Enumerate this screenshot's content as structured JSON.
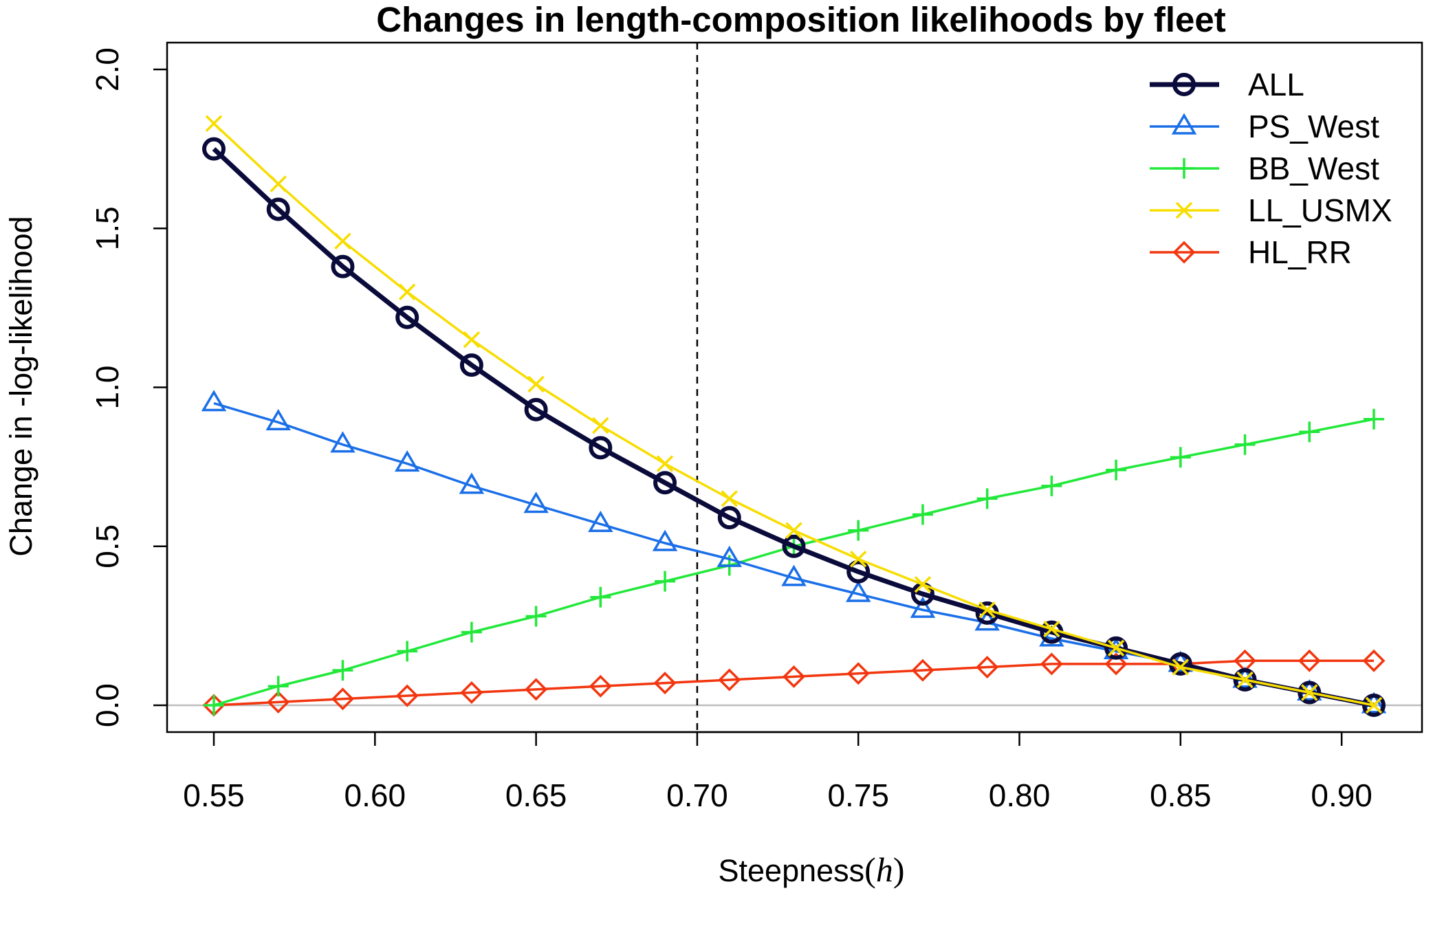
{
  "chart_data": {
    "type": "line",
    "title": "Changes in length-composition likelihoods by fleet",
    "xlabel": {
      "text": "Steepness",
      "symbol": "h"
    },
    "ylabel": "Change in -log-likelihood",
    "xlim": [
      0.55,
      0.91
    ],
    "ylim": [
      0.0,
      2.0
    ],
    "x_ticks": [
      "0.55",
      "0.60",
      "0.65",
      "0.70",
      "0.75",
      "0.80",
      "0.85",
      "0.90"
    ],
    "y_ticks": [
      "0.0",
      "0.5",
      "1.0",
      "1.5",
      "2.0"
    ],
    "reference_vline": 0.7,
    "reference_hline": 0.0,
    "legend_position": "top-right",
    "x": [
      0.55,
      0.57,
      0.59,
      0.61,
      0.63,
      0.65,
      0.67,
      0.69,
      0.71,
      0.73,
      0.75,
      0.77,
      0.79,
      0.81,
      0.83,
      0.85,
      0.87,
      0.89,
      0.91
    ],
    "series": [
      {
        "name": "ALL",
        "color": "#0b0b3b",
        "marker": "circle",
        "values": [
          1.75,
          1.56,
          1.38,
          1.22,
          1.07,
          0.93,
          0.81,
          0.7,
          0.59,
          0.5,
          0.42,
          0.35,
          0.29,
          0.23,
          0.18,
          0.13,
          0.08,
          0.04,
          0.0
        ]
      },
      {
        "name": "PS_West",
        "color": "#1a6fe8",
        "marker": "triangle",
        "values": [
          0.95,
          0.89,
          0.82,
          0.76,
          0.69,
          0.63,
          0.57,
          0.51,
          0.46,
          0.4,
          0.35,
          0.3,
          0.26,
          0.21,
          0.17,
          0.13,
          0.08,
          0.04,
          0.0
        ]
      },
      {
        "name": "BB_West",
        "color": "#22e83a",
        "marker": "plus",
        "values": [
          0.0,
          0.06,
          0.11,
          0.17,
          0.23,
          0.28,
          0.34,
          0.39,
          0.44,
          0.5,
          0.55,
          0.6,
          0.65,
          0.69,
          0.74,
          0.78,
          0.82,
          0.86,
          0.9
        ]
      },
      {
        "name": "LL_USMX",
        "color": "#f7dd00",
        "marker": "cross",
        "values": [
          1.83,
          1.64,
          1.46,
          1.3,
          1.15,
          1.01,
          0.88,
          0.76,
          0.65,
          0.55,
          0.46,
          0.38,
          0.3,
          0.24,
          0.18,
          0.12,
          0.08,
          0.04,
          0.0
        ]
      },
      {
        "name": "HL_RR",
        "color": "#f2360f",
        "marker": "diamond",
        "values": [
          0.0,
          0.01,
          0.02,
          0.03,
          0.04,
          0.05,
          0.06,
          0.07,
          0.08,
          0.09,
          0.1,
          0.11,
          0.12,
          0.13,
          0.13,
          0.13,
          0.14,
          0.14,
          0.14
        ]
      }
    ]
  }
}
